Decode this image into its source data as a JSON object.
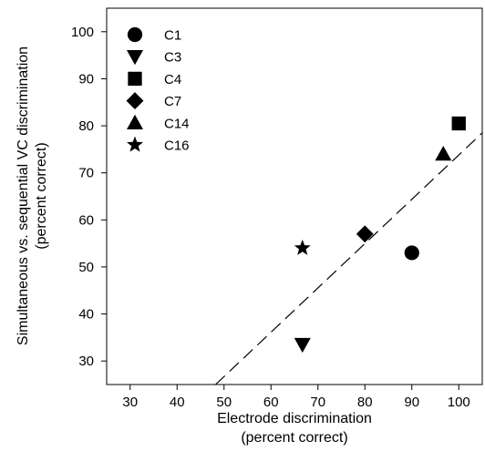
{
  "chart_data": {
    "type": "scatter",
    "xlabel_lines": [
      "Electrode discrimination",
      "(percent correct)"
    ],
    "ylabel_lines": [
      "Simultaneous vs. sequential VC discrimination",
      "(percent correct)"
    ],
    "xlim": [
      25,
      105
    ],
    "ylim": [
      25,
      105
    ],
    "xticks": [
      30,
      40,
      50,
      60,
      70,
      80,
      90,
      100
    ],
    "yticks": [
      30,
      40,
      50,
      60,
      70,
      80,
      90,
      100
    ],
    "grid": false,
    "legend": "top-left",
    "series": [
      {
        "name": "C1",
        "marker": "circle",
        "x": [
          90
        ],
        "y": [
          53
        ]
      },
      {
        "name": "C3",
        "marker": "triangle-down",
        "x": [
          66.7
        ],
        "y": [
          33.5
        ]
      },
      {
        "name": "C4",
        "marker": "square",
        "x": [
          100
        ],
        "y": [
          80.5
        ]
      },
      {
        "name": "C7",
        "marker": "diamond",
        "x": [
          80
        ],
        "y": [
          57
        ]
      },
      {
        "name": "C14",
        "marker": "triangle-up",
        "x": [
          96.7
        ],
        "y": [
          74
        ]
      },
      {
        "name": "C16",
        "marker": "star",
        "x": [
          66.7
        ],
        "y": [
          54
        ]
      }
    ],
    "regression_line": {
      "style": "dashed",
      "x": [
        48.2,
        105
      ],
      "y": [
        25,
        78.5
      ]
    },
    "colors": {
      "markers": "#000000",
      "axes": "#000000",
      "background": "#ffffff"
    }
  }
}
